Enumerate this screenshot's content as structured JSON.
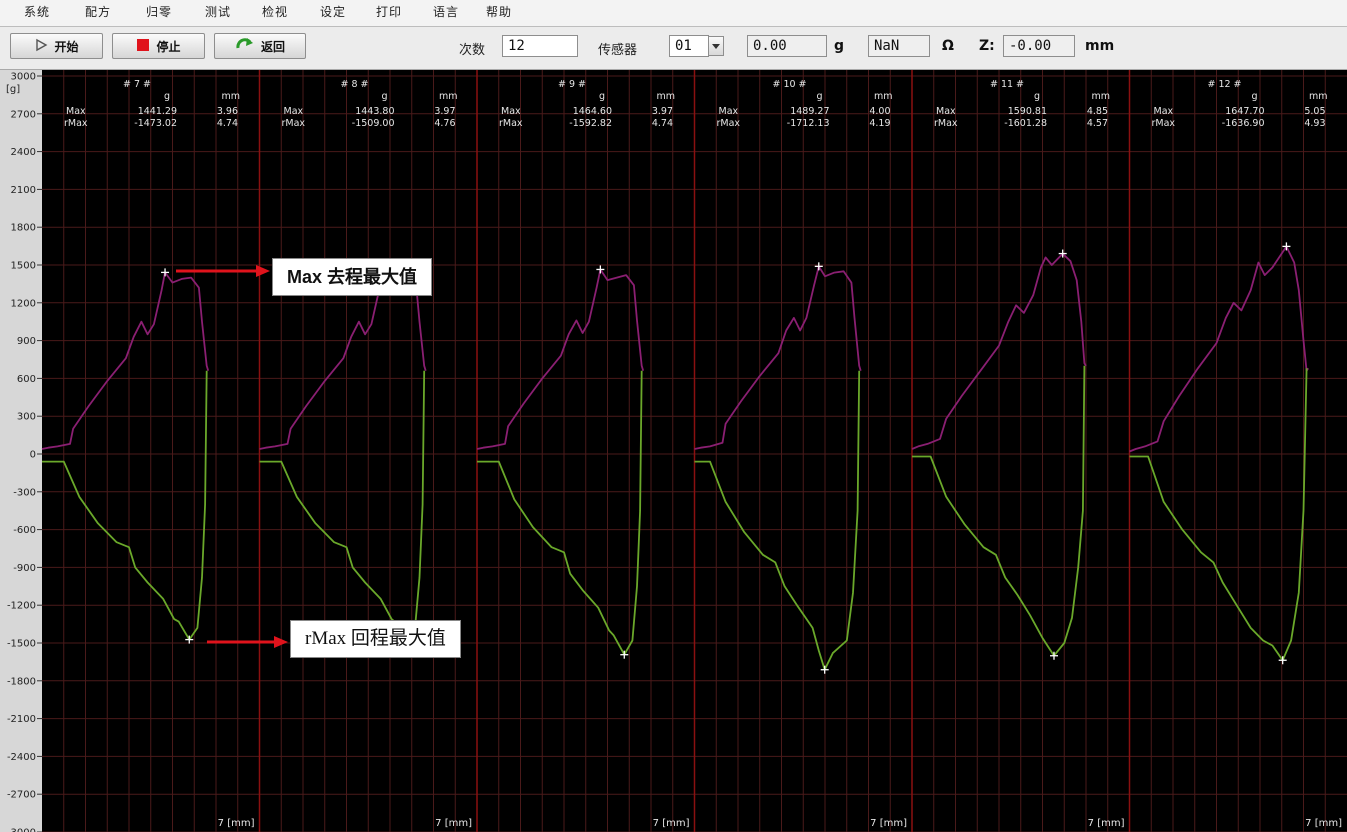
{
  "menu": [
    "系统",
    "配方",
    "归零",
    "测试",
    "检视",
    "设定",
    "打印",
    "语言",
    "帮助"
  ],
  "toolbar": {
    "start_label": "开始",
    "stop_label": "停止",
    "return_label": "返回",
    "count_label": "次数",
    "count_value": "12",
    "sensor_label": "传感器",
    "sensor_value": "01",
    "force_value": "0.00",
    "force_unit": "g",
    "resistance_value": "NaN",
    "resistance_unit": "Ω",
    "z_label": "Z:",
    "z_value": "-0.00",
    "z_unit": "mm",
    "colors": {
      "stop_icon": "#e0131c",
      "return_icon": "#2a9a2a"
    }
  },
  "annotations": {
    "max_label": "Max 去程最大值",
    "rmax_label": "rMax 回程最大值",
    "arrow_color": "#e0131c"
  },
  "chart_data": {
    "type": "line",
    "y_unit_label": "[g]",
    "ylim": [
      -3000,
      3000
    ],
    "y_ticks": [
      "3000",
      "2700",
      "2400",
      "2100",
      "1800",
      "1500",
      "1200",
      "900",
      "600",
      "300",
      "0",
      "-300",
      "-600",
      "-900",
      "-1200",
      "-1500",
      "-1800",
      "-2100",
      "-2400",
      "-2700",
      "-3000"
    ],
    "colors": {
      "background": "#000000",
      "grid": "#4a1a1a",
      "separator": "#8a1010",
      "forward": "#8a1f72",
      "return": "#6aa82a",
      "marker": "#ffffff"
    },
    "header_units": {
      "g": "g",
      "mm": "mm"
    },
    "row_labels": {
      "max": "Max",
      "rmax": "rMax"
    },
    "x_label": "7 [mm]",
    "panels": [
      {
        "title": "# 7 #",
        "max_g": "1441.29",
        "max_mm": "3.96",
        "rmax_g": "-1473.02",
        "rmax_mm": "4.74",
        "max_x": 3.96,
        "max_y": 1441.29,
        "rmax_x": 4.74,
        "rmax_y": -1473.02,
        "forward": [
          [
            0,
            40
          ],
          [
            0.2,
            50
          ],
          [
            0.5,
            60
          ],
          [
            0.9,
            80
          ],
          [
            1.0,
            200
          ],
          [
            1.5,
            380
          ],
          [
            2.1,
            580
          ],
          [
            2.7,
            760
          ],
          [
            2.95,
            930
          ],
          [
            3.2,
            1050
          ],
          [
            3.4,
            950
          ],
          [
            3.6,
            1030
          ],
          [
            3.85,
            1300
          ],
          [
            3.96,
            1441
          ],
          [
            4.2,
            1360
          ],
          [
            4.5,
            1390
          ],
          [
            4.8,
            1400
          ],
          [
            5.05,
            1320
          ],
          [
            5.15,
            1050
          ],
          [
            5.3,
            700
          ],
          [
            5.35,
            660
          ]
        ],
        "return": [
          [
            0,
            -60
          ],
          [
            0.7,
            -60
          ],
          [
            1.2,
            -340
          ],
          [
            1.8,
            -550
          ],
          [
            2.4,
            -700
          ],
          [
            2.8,
            -740
          ],
          [
            3.0,
            -900
          ],
          [
            3.4,
            -1020
          ],
          [
            3.9,
            -1150
          ],
          [
            4.25,
            -1310
          ],
          [
            4.4,
            -1330
          ],
          [
            4.74,
            -1473
          ],
          [
            5.0,
            -1380
          ],
          [
            5.15,
            -980
          ],
          [
            5.25,
            -400
          ],
          [
            5.3,
            660
          ]
        ]
      },
      {
        "title": "# 8 #",
        "max_g": "1443.80",
        "max_mm": "3.97",
        "rmax_g": "-1509.00",
        "rmax_mm": "4.76",
        "max_x": 3.97,
        "max_y": 1443.8,
        "rmax_x": 4.76,
        "rmax_y": -1509.0,
        "forward": [
          [
            0,
            40
          ],
          [
            0.2,
            50
          ],
          [
            0.5,
            60
          ],
          [
            0.9,
            80
          ],
          [
            1.0,
            200
          ],
          [
            1.5,
            380
          ],
          [
            2.1,
            580
          ],
          [
            2.7,
            760
          ],
          [
            2.95,
            930
          ],
          [
            3.2,
            1050
          ],
          [
            3.4,
            950
          ],
          [
            3.6,
            1030
          ],
          [
            3.85,
            1300
          ],
          [
            3.97,
            1443
          ],
          [
            4.2,
            1360
          ],
          [
            4.5,
            1390
          ],
          [
            4.8,
            1400
          ],
          [
            5.05,
            1320
          ],
          [
            5.15,
            1050
          ],
          [
            5.3,
            700
          ],
          [
            5.35,
            660
          ]
        ],
        "return": [
          [
            0,
            -60
          ],
          [
            0.7,
            -60
          ],
          [
            1.2,
            -340
          ],
          [
            1.8,
            -550
          ],
          [
            2.4,
            -700
          ],
          [
            2.8,
            -740
          ],
          [
            3.0,
            -900
          ],
          [
            3.4,
            -1020
          ],
          [
            3.9,
            -1150
          ],
          [
            4.25,
            -1310
          ],
          [
            4.4,
            -1340
          ],
          [
            4.76,
            -1509
          ],
          [
            5.0,
            -1390
          ],
          [
            5.15,
            -980
          ],
          [
            5.25,
            -400
          ],
          [
            5.3,
            660
          ]
        ]
      },
      {
        "title": "# 9 #",
        "max_g": "1464.60",
        "max_mm": "3.97",
        "rmax_g": "-1592.82",
        "rmax_mm": "4.74",
        "max_x": 3.97,
        "max_y": 1464.6,
        "rmax_x": 4.74,
        "rmax_y": -1592.82,
        "forward": [
          [
            0,
            40
          ],
          [
            0.2,
            50
          ],
          [
            0.5,
            60
          ],
          [
            0.9,
            80
          ],
          [
            1.0,
            220
          ],
          [
            1.5,
            400
          ],
          [
            2.1,
            600
          ],
          [
            2.7,
            780
          ],
          [
            2.95,
            950
          ],
          [
            3.2,
            1060
          ],
          [
            3.4,
            960
          ],
          [
            3.6,
            1050
          ],
          [
            3.85,
            1320
          ],
          [
            3.97,
            1464
          ],
          [
            4.2,
            1380
          ],
          [
            4.5,
            1400
          ],
          [
            4.8,
            1420
          ],
          [
            5.05,
            1340
          ],
          [
            5.15,
            1060
          ],
          [
            5.3,
            700
          ],
          [
            5.35,
            660
          ]
        ],
        "return": [
          [
            0,
            -60
          ],
          [
            0.7,
            -60
          ],
          [
            1.2,
            -360
          ],
          [
            1.8,
            -580
          ],
          [
            2.4,
            -740
          ],
          [
            2.8,
            -780
          ],
          [
            3.0,
            -950
          ],
          [
            3.4,
            -1080
          ],
          [
            3.9,
            -1220
          ],
          [
            4.25,
            -1400
          ],
          [
            4.4,
            -1440
          ],
          [
            4.74,
            -1592
          ],
          [
            5.0,
            -1480
          ],
          [
            5.15,
            -1050
          ],
          [
            5.25,
            -450
          ],
          [
            5.3,
            660
          ]
        ]
      },
      {
        "title": "# 10 #",
        "max_g": "1489.27",
        "max_mm": "4.00",
        "rmax_g": "-1712.13",
        "rmax_mm": "4.19",
        "max_x": 4.0,
        "max_y": 1489.27,
        "rmax_x": 4.19,
        "rmax_y": -1712.13,
        "forward": [
          [
            0,
            40
          ],
          [
            0.2,
            50
          ],
          [
            0.5,
            60
          ],
          [
            0.9,
            90
          ],
          [
            1.0,
            240
          ],
          [
            1.5,
            420
          ],
          [
            2.1,
            620
          ],
          [
            2.7,
            800
          ],
          [
            2.95,
            980
          ],
          [
            3.2,
            1080
          ],
          [
            3.4,
            980
          ],
          [
            3.6,
            1080
          ],
          [
            3.85,
            1340
          ],
          [
            4.0,
            1489
          ],
          [
            4.2,
            1410
          ],
          [
            4.5,
            1440
          ],
          [
            4.8,
            1450
          ],
          [
            5.05,
            1360
          ],
          [
            5.15,
            1080
          ],
          [
            5.3,
            700
          ],
          [
            5.35,
            660
          ]
        ],
        "return": [
          [
            0,
            -60
          ],
          [
            0.5,
            -60
          ],
          [
            1.0,
            -380
          ],
          [
            1.6,
            -620
          ],
          [
            2.2,
            -800
          ],
          [
            2.6,
            -860
          ],
          [
            2.9,
            -1050
          ],
          [
            3.3,
            -1200
          ],
          [
            3.8,
            -1380
          ],
          [
            4.0,
            -1560
          ],
          [
            4.19,
            -1712
          ],
          [
            4.45,
            -1580
          ],
          [
            4.9,
            -1480
          ],
          [
            5.1,
            -1100
          ],
          [
            5.25,
            -450
          ],
          [
            5.3,
            660
          ]
        ]
      },
      {
        "title": "# 11 #",
        "max_g": "1590.81",
        "max_mm": "4.85",
        "rmax_g": "-1601.28",
        "rmax_mm": "4.57",
        "max_x": 4.85,
        "max_y": 1590.81,
        "rmax_x": 4.57,
        "rmax_y": -1601.28,
        "forward": [
          [
            0,
            40
          ],
          [
            0.2,
            60
          ],
          [
            0.5,
            80
          ],
          [
            0.9,
            120
          ],
          [
            1.1,
            280
          ],
          [
            1.6,
            460
          ],
          [
            2.2,
            660
          ],
          [
            2.8,
            860
          ],
          [
            3.1,
            1050
          ],
          [
            3.35,
            1180
          ],
          [
            3.6,
            1120
          ],
          [
            3.9,
            1260
          ],
          [
            4.15,
            1480
          ],
          [
            4.3,
            1560
          ],
          [
            4.5,
            1500
          ],
          [
            4.85,
            1590
          ],
          [
            5.1,
            1530
          ],
          [
            5.3,
            1380
          ],
          [
            5.45,
            1050
          ],
          [
            5.55,
            720
          ],
          [
            5.6,
            700
          ]
        ],
        "return": [
          [
            0,
            -20
          ],
          [
            0.6,
            -20
          ],
          [
            1.1,
            -340
          ],
          [
            1.7,
            -560
          ],
          [
            2.3,
            -740
          ],
          [
            2.7,
            -800
          ],
          [
            3.0,
            -980
          ],
          [
            3.4,
            -1120
          ],
          [
            3.8,
            -1280
          ],
          [
            4.2,
            -1460
          ],
          [
            4.57,
            -1601
          ],
          [
            4.9,
            -1500
          ],
          [
            5.15,
            -1300
          ],
          [
            5.35,
            -900
          ],
          [
            5.5,
            -450
          ],
          [
            5.55,
            700
          ]
        ]
      },
      {
        "title": "# 12 #",
        "max_g": "1647.70",
        "max_mm": "5.05",
        "rmax_g": "-1636.90",
        "rmax_mm": "4.93",
        "max_x": 5.05,
        "max_y": 1647.7,
        "rmax_x": 4.93,
        "rmax_y": -1636.9,
        "forward": [
          [
            0,
            20
          ],
          [
            0.2,
            40
          ],
          [
            0.5,
            60
          ],
          [
            0.9,
            100
          ],
          [
            1.1,
            260
          ],
          [
            1.6,
            460
          ],
          [
            2.2,
            680
          ],
          [
            2.8,
            880
          ],
          [
            3.1,
            1080
          ],
          [
            3.35,
            1200
          ],
          [
            3.6,
            1140
          ],
          [
            3.9,
            1300
          ],
          [
            4.15,
            1520
          ],
          [
            4.35,
            1420
          ],
          [
            4.6,
            1480
          ],
          [
            5.05,
            1647
          ],
          [
            5.3,
            1520
          ],
          [
            5.45,
            1300
          ],
          [
            5.6,
            900
          ],
          [
            5.7,
            660
          ],
          [
            5.75,
            680
          ]
        ],
        "return": [
          [
            0,
            -20
          ],
          [
            0.6,
            -20
          ],
          [
            1.1,
            -380
          ],
          [
            1.7,
            -600
          ],
          [
            2.3,
            -780
          ],
          [
            2.7,
            -860
          ],
          [
            3.0,
            -1020
          ],
          [
            3.4,
            -1180
          ],
          [
            3.9,
            -1380
          ],
          [
            4.3,
            -1480
          ],
          [
            4.6,
            -1520
          ],
          [
            4.93,
            -1637
          ],
          [
            5.2,
            -1480
          ],
          [
            5.45,
            -1100
          ],
          [
            5.6,
            -450
          ],
          [
            5.7,
            680
          ]
        ]
      }
    ]
  }
}
